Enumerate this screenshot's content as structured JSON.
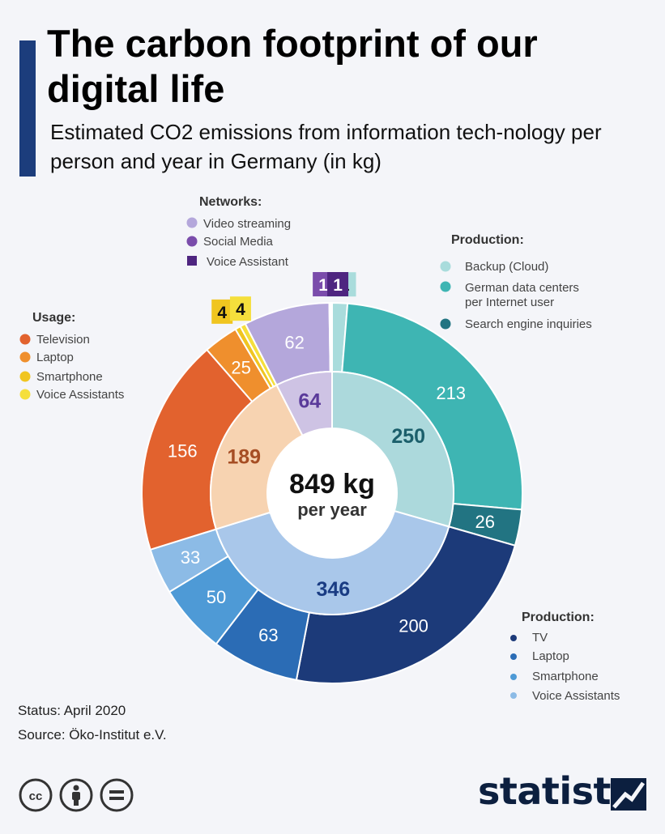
{
  "header": {
    "title": "The carbon footprint of our digital life",
    "subtitle": "Estimated CO2 emissions from information tech-nology per person and year in Germany (in kg)"
  },
  "center": {
    "total": "849 kg",
    "unit_label": "per year"
  },
  "legends": {
    "networks": {
      "title": "Networks:",
      "items": [
        "Video streaming",
        "Social Media",
        "Voice Assistant"
      ]
    },
    "usage": {
      "title": "Usage:",
      "items": [
        "Television",
        "Laptop",
        "Smartphone",
        "Voice Assistants"
      ]
    },
    "production_cloud": {
      "title": "Production:",
      "items": [
        "Backup (Cloud)",
        "German data centers per Internet user",
        "Search engine inquiries"
      ]
    },
    "production_devices": {
      "title": "Production:",
      "items": [
        "TV",
        "Laptop",
        "Smartphone",
        "Voice Assistants"
      ]
    }
  },
  "chart_data": {
    "type": "pie",
    "total": 849,
    "inner_ring": [
      {
        "group": "Production: data centers & cloud",
        "value": 250,
        "color": "#acd9dc",
        "text_color": "#1b5f6b"
      },
      {
        "group": "Production: devices",
        "value": 346,
        "color": "#a9c7ea",
        "text_color": "#1a3c83"
      },
      {
        "group": "Usage",
        "value": 189,
        "color": "#f7d3b1",
        "text_color": "#a64e24"
      },
      {
        "group": "Networks",
        "value": 64,
        "color": "#cec3e4",
        "text_color": "#5a3a9a"
      }
    ],
    "outer_ring": [
      {
        "label": "Backup (Cloud)",
        "value": 11,
        "color": "#a9dcdc"
      },
      {
        "label": "German data centers per Internet user",
        "value": 213,
        "color": "#3eb5b3"
      },
      {
        "label": "Search engine inquiries",
        "value": 26,
        "color": "#227482"
      },
      {
        "label": "TV",
        "value": 200,
        "color": "#1c3a79"
      },
      {
        "label": "Laptop",
        "value": 63,
        "color": "#2b6cb5"
      },
      {
        "label": "Smartphone",
        "value": 50,
        "color": "#4e9ad6"
      },
      {
        "label": "Voice Assistants",
        "value": 33,
        "color": "#8cbbe6"
      },
      {
        "label": "Television",
        "value": 156,
        "color": "#e2622e"
      },
      {
        "label": "Laptop",
        "value": 25,
        "color": "#ef8f2d"
      },
      {
        "label": "Smartphone",
        "value": 4,
        "color": "#f0c520"
      },
      {
        "label": "Voice Assistants",
        "value": 4,
        "color": "#f5df3c"
      },
      {
        "label": "Video streaming",
        "value": 62,
        "color": "#b4a7db"
      },
      {
        "label": "Social Media",
        "value": 1,
        "color": "#7a4cab"
      },
      {
        "label": "Voice Assistant",
        "value": 1,
        "color": "#4e2580"
      }
    ]
  },
  "footer": {
    "status": "Status: April 2020",
    "source": "Source: Öko-Institut e.V.",
    "brand": "statista"
  }
}
